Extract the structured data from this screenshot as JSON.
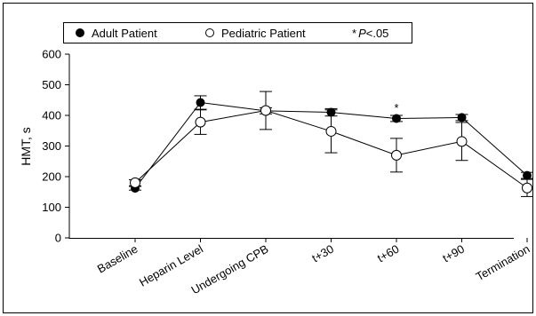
{
  "chart_data": {
    "type": "line",
    "xlabel": "",
    "ylabel": "HMT, s",
    "ylim": [
      0,
      600
    ],
    "yticks": [
      "0",
      "100",
      "200",
      "300",
      "400",
      "500",
      "600"
    ],
    "categories": [
      "Baseline",
      "Heparin Level",
      "Undergoing CPB",
      "t+30",
      "t+60",
      "t+90",
      "Termination"
    ],
    "series": [
      {
        "name": "Adult Patient",
        "marker": "filled-circle",
        "values": [
          162,
          442,
          415,
          410,
          390,
          393,
          204
        ],
        "error": [
          6,
          22,
          10,
          12,
          10,
          10,
          10
        ]
      },
      {
        "name": "Pediatric Patient",
        "marker": "open-circle",
        "values": [
          180,
          378,
          416,
          348,
          270,
          315,
          163
        ],
        "error": [
          10,
          40,
          62,
          70,
          55,
          62,
          28
        ]
      }
    ],
    "legend_note": {
      "symbol": "*",
      "italic_text": "P",
      "text": "<.05"
    },
    "annotations": [
      {
        "text": "*",
        "category": "t+60"
      }
    ],
    "legend_position": "top-left",
    "grid": false
  },
  "colors": {
    "line": "#000000",
    "background": "#ffffff"
  }
}
